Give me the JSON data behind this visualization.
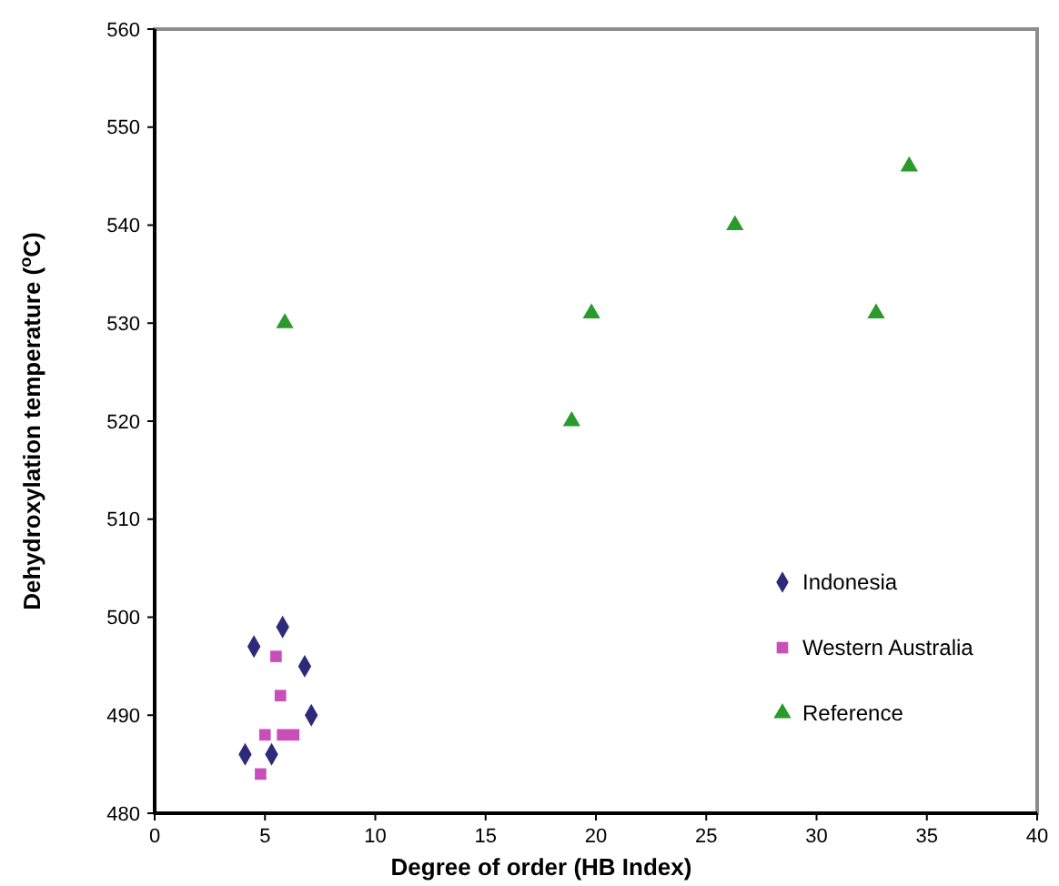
{
  "chart_data": {
    "type": "scatter",
    "xlabel": "Degree of order (HB Index)",
    "ylabel": "Dehydroxylation temperature  ($^{o}$C)",
    "xlim": [
      0,
      40
    ],
    "xticks": [
      0,
      5,
      10,
      15,
      20,
      25,
      30,
      35,
      40
    ],
    "ylim": [
      480,
      560
    ],
    "yticks": [
      480,
      490,
      500,
      510,
      520,
      530,
      540,
      550,
      560
    ],
    "grid": false,
    "legend": "right",
    "series": [
      {
        "name": "Indonesia",
        "color": "#2e2a7a",
        "marker": "diamond",
        "x": [
          4.5,
          5.8,
          6.8,
          7.1,
          4.1,
          5.3
        ],
        "values": [
          497,
          499,
          495,
          490,
          486,
          486
        ]
      },
      {
        "name": "Western Australia",
        "color": "#c94fb8",
        "marker": "square",
        "x": [
          5.5,
          5.7,
          5.0,
          5.8,
          6.3,
          4.8
        ],
        "values": [
          496,
          492,
          488,
          488,
          488,
          484
        ]
      },
      {
        "name": "Reference",
        "color": "#2a9a2a",
        "marker": "triangle",
        "x": [
          5.9,
          18.9,
          19.8,
          26.3,
          32.7,
          34.2
        ],
        "values": [
          530,
          520,
          531,
          540,
          531,
          546
        ]
      }
    ]
  }
}
